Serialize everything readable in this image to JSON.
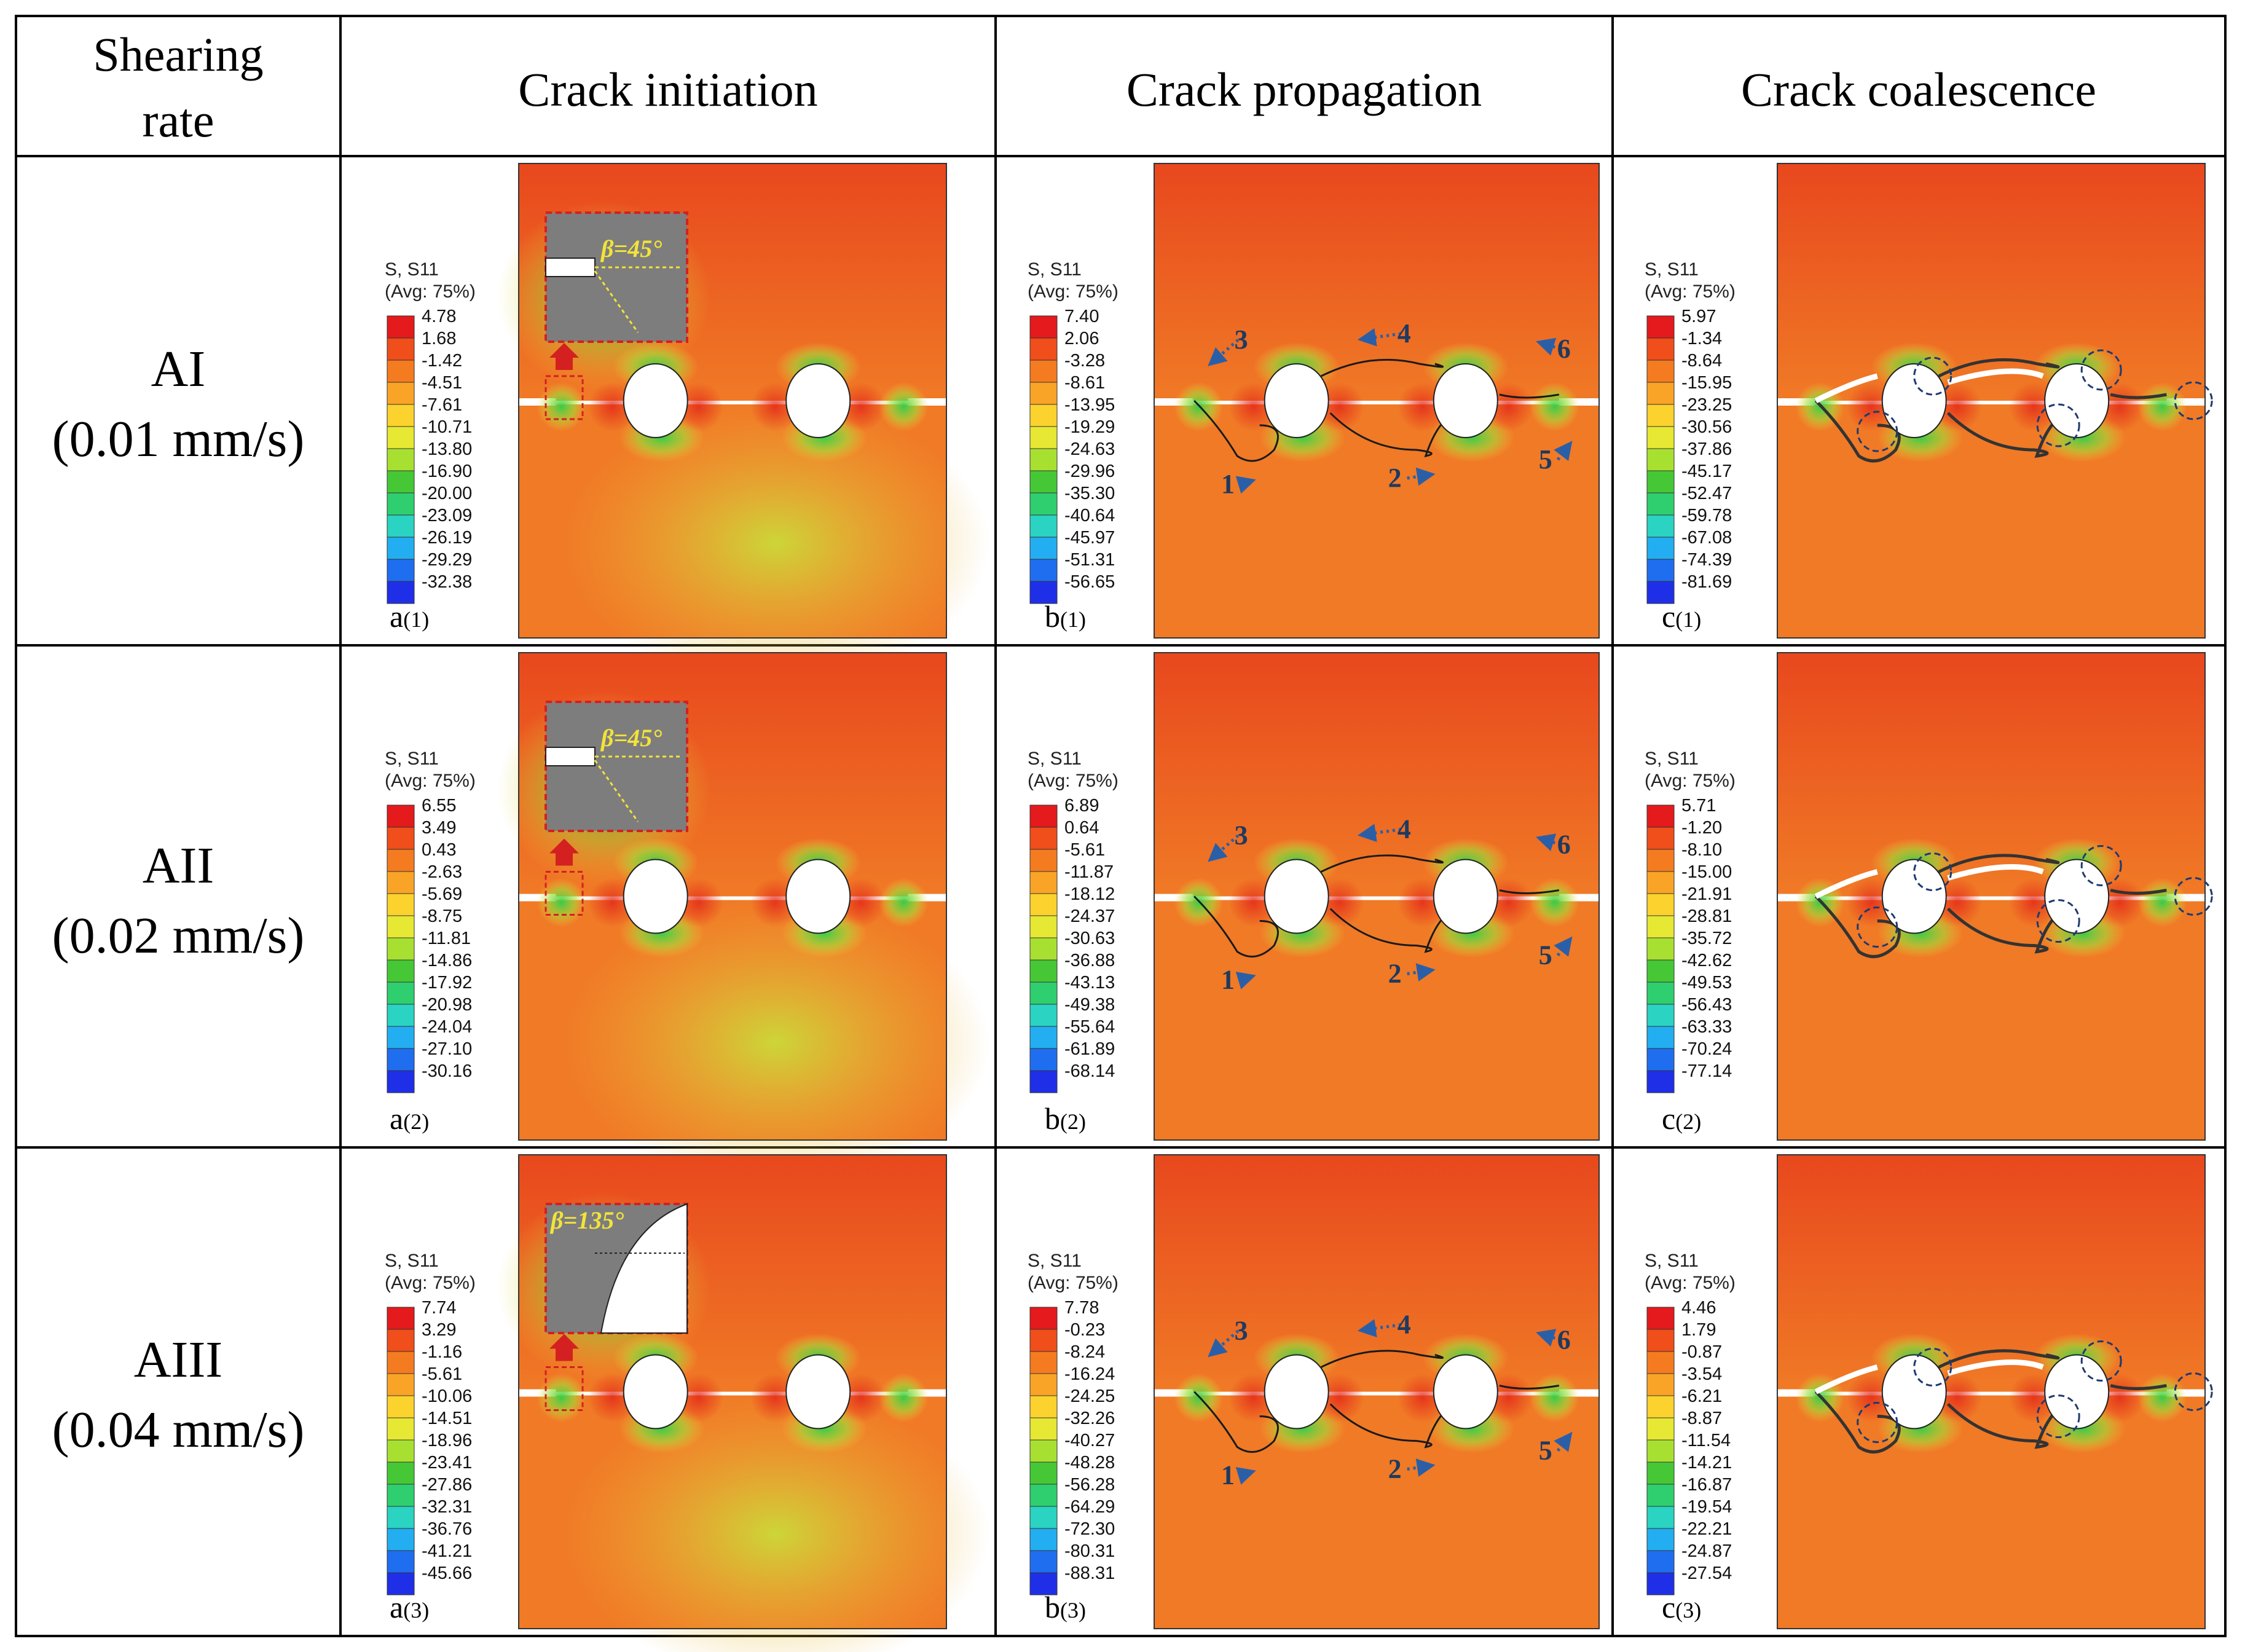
{
  "header": {
    "col0_line1": "Shearing",
    "col0_line2": "rate",
    "col1": "Crack initiation",
    "col2": "Crack propagation",
    "col3": "Crack coalescence"
  },
  "legend_title_line1": "S, S11",
  "legend_title_line2": "(Avg: 75%)",
  "rows": [
    {
      "name": "AI",
      "rate": "(0.01 mm/s)",
      "panels": [
        {
          "letter": "a",
          "sub": "(1)",
          "ticks": [
            "4.78",
            "1.68",
            "-1.42",
            "-4.51",
            "-7.61",
            "-10.71",
            "-13.80",
            "-16.90",
            "-20.00",
            "-23.09",
            "-26.19",
            "-29.29",
            "-32.38"
          ],
          "beta": "β=45°",
          "beta_type": "notch"
        },
        {
          "letter": "b",
          "sub": "(1)",
          "ticks": [
            "7.40",
            "2.06",
            "-3.28",
            "-8.61",
            "-13.95",
            "-19.29",
            "-24.63",
            "-29.96",
            "-35.30",
            "-40.64",
            "-45.97",
            "-51.31",
            "-56.65"
          ],
          "crack_labels": [
            "1",
            "2",
            "3",
            "4",
            "5",
            "6"
          ]
        },
        {
          "letter": "c",
          "sub": "(1)",
          "ticks": [
            "5.97",
            "-1.34",
            "-8.64",
            "-15.95",
            "-23.25",
            "-30.56",
            "-37.86",
            "-45.17",
            "-52.47",
            "-59.78",
            "-67.08",
            "-74.39",
            "-81.69"
          ]
        }
      ]
    },
    {
      "name": "AII",
      "rate": "(0.02 mm/s)",
      "panels": [
        {
          "letter": "a",
          "sub": "(2)",
          "ticks": [
            "6.55",
            "3.49",
            "0.43",
            "-2.63",
            "-5.69",
            "-8.75",
            "-11.81",
            "-14.86",
            "-17.92",
            "-20.98",
            "-24.04",
            "-27.10",
            "-30.16"
          ],
          "beta": "β=45°",
          "beta_type": "notch"
        },
        {
          "letter": "b",
          "sub": "(2)",
          "ticks": [
            "6.89",
            "0.64",
            "-5.61",
            "-11.87",
            "-18.12",
            "-24.37",
            "-30.63",
            "-36.88",
            "-43.13",
            "-49.38",
            "-55.64",
            "-61.89",
            "-68.14"
          ],
          "crack_labels": [
            "1",
            "2",
            "3",
            "4",
            "5",
            "6"
          ]
        },
        {
          "letter": "c",
          "sub": "(2)",
          "ticks": [
            "5.71",
            "-1.20",
            "-8.10",
            "-15.00",
            "-21.91",
            "-28.81",
            "-35.72",
            "-42.62",
            "-49.53",
            "-56.43",
            "-63.33",
            "-70.24",
            "-77.14"
          ]
        }
      ]
    },
    {
      "name": "AIII",
      "rate": "(0.04 mm/s)",
      "panels": [
        {
          "letter": "a",
          "sub": "(3)",
          "ticks": [
            "7.74",
            "3.29",
            "-1.16",
            "-5.61",
            "-10.06",
            "-14.51",
            "-18.96",
            "-23.41",
            "-27.86",
            "-32.31",
            "-36.76",
            "-41.21",
            "-45.66"
          ],
          "beta": "β=135°",
          "beta_type": "hole"
        },
        {
          "letter": "b",
          "sub": "(3)",
          "ticks": [
            "7.78",
            "-0.23",
            "-8.24",
            "-16.24",
            "-24.25",
            "-32.26",
            "-40.27",
            "-48.28",
            "-56.28",
            "-64.29",
            "-72.30",
            "-80.31",
            "-88.31"
          ],
          "crack_labels": [
            "1",
            "2",
            "3",
            "4",
            "5",
            "6"
          ]
        },
        {
          "letter": "c",
          "sub": "(3)",
          "ticks": [
            "4.46",
            "1.79",
            "-0.87",
            "-3.54",
            "-6.21",
            "-8.87",
            "-11.54",
            "-14.21",
            "-16.87",
            "-19.54",
            "-22.21",
            "-24.87",
            "-27.54"
          ]
        }
      ]
    }
  ],
  "colors": {
    "grid": "#000000",
    "field_base": "#f07a26",
    "field_top": "#e8501e",
    "stress_green": "#3cc83c",
    "crack_line": "#1a1a1a",
    "arrow_blue": "#2a5fa8",
    "inset_red": "#d42020",
    "beta_yellow": "#f2e33a",
    "legend_scale": [
      "#e41a1c",
      "#f04e1a",
      "#f47b20",
      "#f9a427",
      "#fbd22e",
      "#e6e833",
      "#a8e032",
      "#46c836",
      "#2fcf6f",
      "#2ad3c2",
      "#22aef0",
      "#1f6ef0",
      "#1f2fe8"
    ]
  }
}
